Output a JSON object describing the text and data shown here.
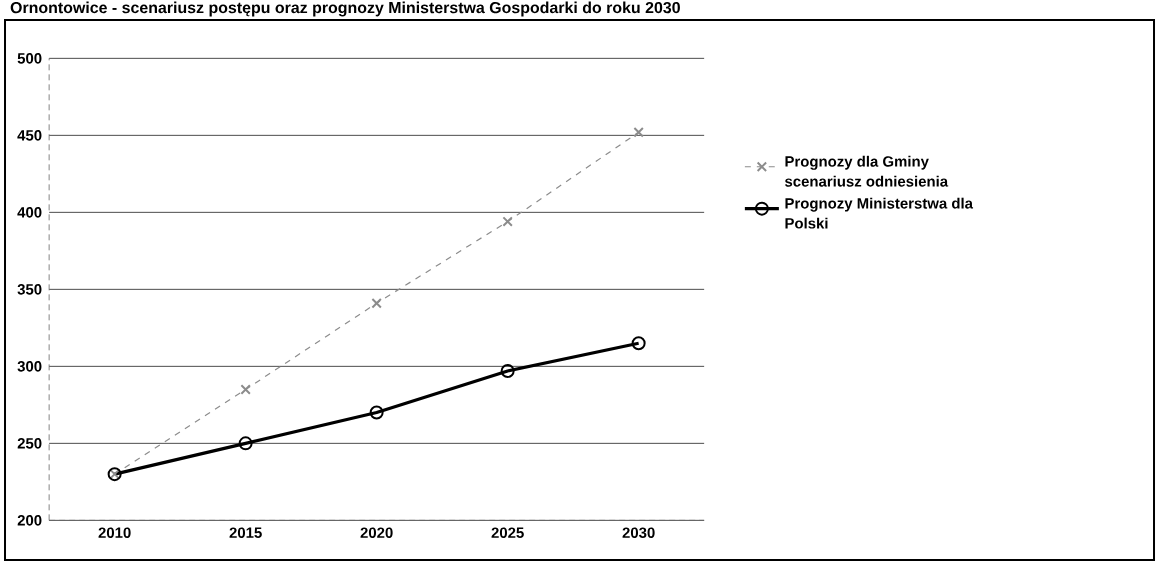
{
  "chart_data": {
    "type": "line",
    "title": "Ornontowice - scenariusz postępu oraz prognozy Ministerstwa Gospodarki do roku 2030",
    "categories": [
      "2010",
      "2015",
      "2020",
      "2025",
      "2030"
    ],
    "series": [
      {
        "name": "Prognozy dla Gminy scenariusz odniesienia",
        "color": "#8c8c8c",
        "values": [
          230,
          285,
          341,
          394,
          452
        ],
        "marker": "cross",
        "line_style": "dashed"
      },
      {
        "name": "Prognozy Ministerstwa dla Polski",
        "color": "#000000",
        "values": [
          230,
          250,
          270,
          297,
          315
        ],
        "marker": "circle",
        "line_style": "solid"
      }
    ],
    "ylim": [
      200,
      500
    ],
    "yticks": [
      200,
      250,
      300,
      350,
      400,
      450,
      500
    ],
    "grid": "y",
    "legend": "right"
  }
}
